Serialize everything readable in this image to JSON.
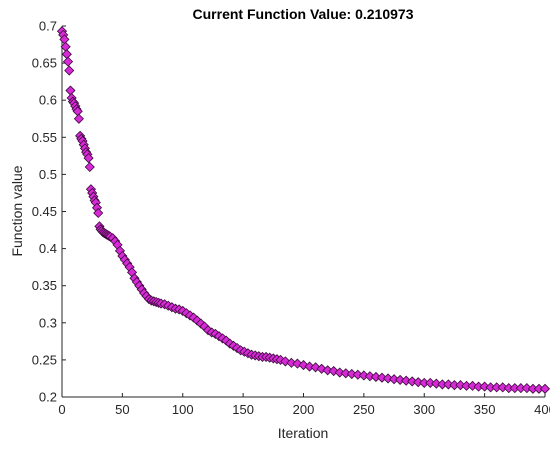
{
  "colors": {
    "marker_fill": "#d62ad6",
    "marker_stroke": "#3a0a3a",
    "axis": "#262626",
    "background": "#ffffff"
  },
  "chart_data": {
    "type": "scatter",
    "title": "Current Function Value: 0.210973",
    "xlabel": "Iteration",
    "ylabel": "Function value",
    "xlim": [
      0,
      400
    ],
    "ylim": [
      0.2,
      0.7
    ],
    "xticks": [
      0,
      50,
      100,
      150,
      200,
      250,
      300,
      350,
      400
    ],
    "yticks": [
      0.2,
      0.25,
      0.3,
      0.35,
      0.4,
      0.45,
      0.5,
      0.55,
      0.6,
      0.65,
      0.7
    ],
    "grid": false,
    "marker": "diamond",
    "series": [
      {
        "x": [
          0,
          1,
          2,
          3,
          4,
          5,
          6,
          7,
          8,
          9,
          10,
          11,
          12,
          13,
          14,
          15,
          16,
          17,
          18,
          19,
          20,
          21,
          22,
          23,
          24,
          25,
          26,
          27,
          28,
          29,
          30,
          31,
          32,
          33,
          34,
          35,
          36,
          37,
          38,
          39,
          40,
          42,
          44,
          46,
          48,
          50,
          52,
          54,
          56,
          58,
          60,
          62,
          64,
          66,
          68,
          70,
          72,
          74,
          76,
          78,
          80,
          82,
          85,
          88,
          91,
          94,
          97,
          100,
          103,
          106,
          109,
          112,
          115,
          118,
          121,
          124,
          127,
          130,
          133,
          136,
          139,
          142,
          145,
          148,
          151,
          154,
          157,
          160,
          163,
          166,
          169,
          172,
          175,
          178,
          181,
          185,
          190,
          195,
          200,
          205,
          210,
          215,
          220,
          225,
          230,
          235,
          240,
          245,
          250,
          255,
          260,
          265,
          270,
          275,
          280,
          285,
          290,
          295,
          300,
          305,
          310,
          315,
          320,
          325,
          330,
          335,
          340,
          345,
          350,
          355,
          360,
          365,
          370,
          375,
          380,
          385,
          390,
          395,
          400
        ],
        "y": [
          0.693,
          0.688,
          0.682,
          0.672,
          0.662,
          0.652,
          0.64,
          0.613,
          0.603,
          0.598,
          0.596,
          0.592,
          0.588,
          0.585,
          0.575,
          0.552,
          0.548,
          0.545,
          0.54,
          0.535,
          0.53,
          0.527,
          0.522,
          0.51,
          0.48,
          0.475,
          0.47,
          0.465,
          0.462,
          0.455,
          0.448,
          0.43,
          0.426,
          0.424,
          0.422,
          0.421,
          0.42,
          0.419,
          0.418,
          0.417,
          0.416,
          0.414,
          0.41,
          0.405,
          0.397,
          0.39,
          0.385,
          0.38,
          0.375,
          0.368,
          0.36,
          0.355,
          0.35,
          0.345,
          0.34,
          0.336,
          0.332,
          0.33,
          0.329,
          0.328,
          0.327,
          0.326,
          0.325,
          0.323,
          0.321,
          0.319,
          0.318,
          0.316,
          0.313,
          0.31,
          0.307,
          0.303,
          0.299,
          0.295,
          0.29,
          0.287,
          0.285,
          0.282,
          0.279,
          0.276,
          0.272,
          0.269,
          0.266,
          0.263,
          0.261,
          0.259,
          0.257,
          0.256,
          0.255,
          0.254,
          0.254,
          0.253,
          0.252,
          0.251,
          0.25,
          0.248,
          0.246,
          0.245,
          0.243,
          0.241,
          0.24,
          0.238,
          0.236,
          0.235,
          0.233,
          0.232,
          0.231,
          0.23,
          0.229,
          0.228,
          0.227,
          0.226,
          0.225,
          0.224,
          0.223,
          0.222,
          0.221,
          0.22,
          0.219,
          0.219,
          0.218,
          0.217,
          0.217,
          0.216,
          0.216,
          0.215,
          0.215,
          0.214,
          0.214,
          0.213,
          0.213,
          0.213,
          0.212,
          0.212,
          0.212,
          0.212,
          0.211,
          0.211,
          0.211
        ]
      }
    ]
  }
}
